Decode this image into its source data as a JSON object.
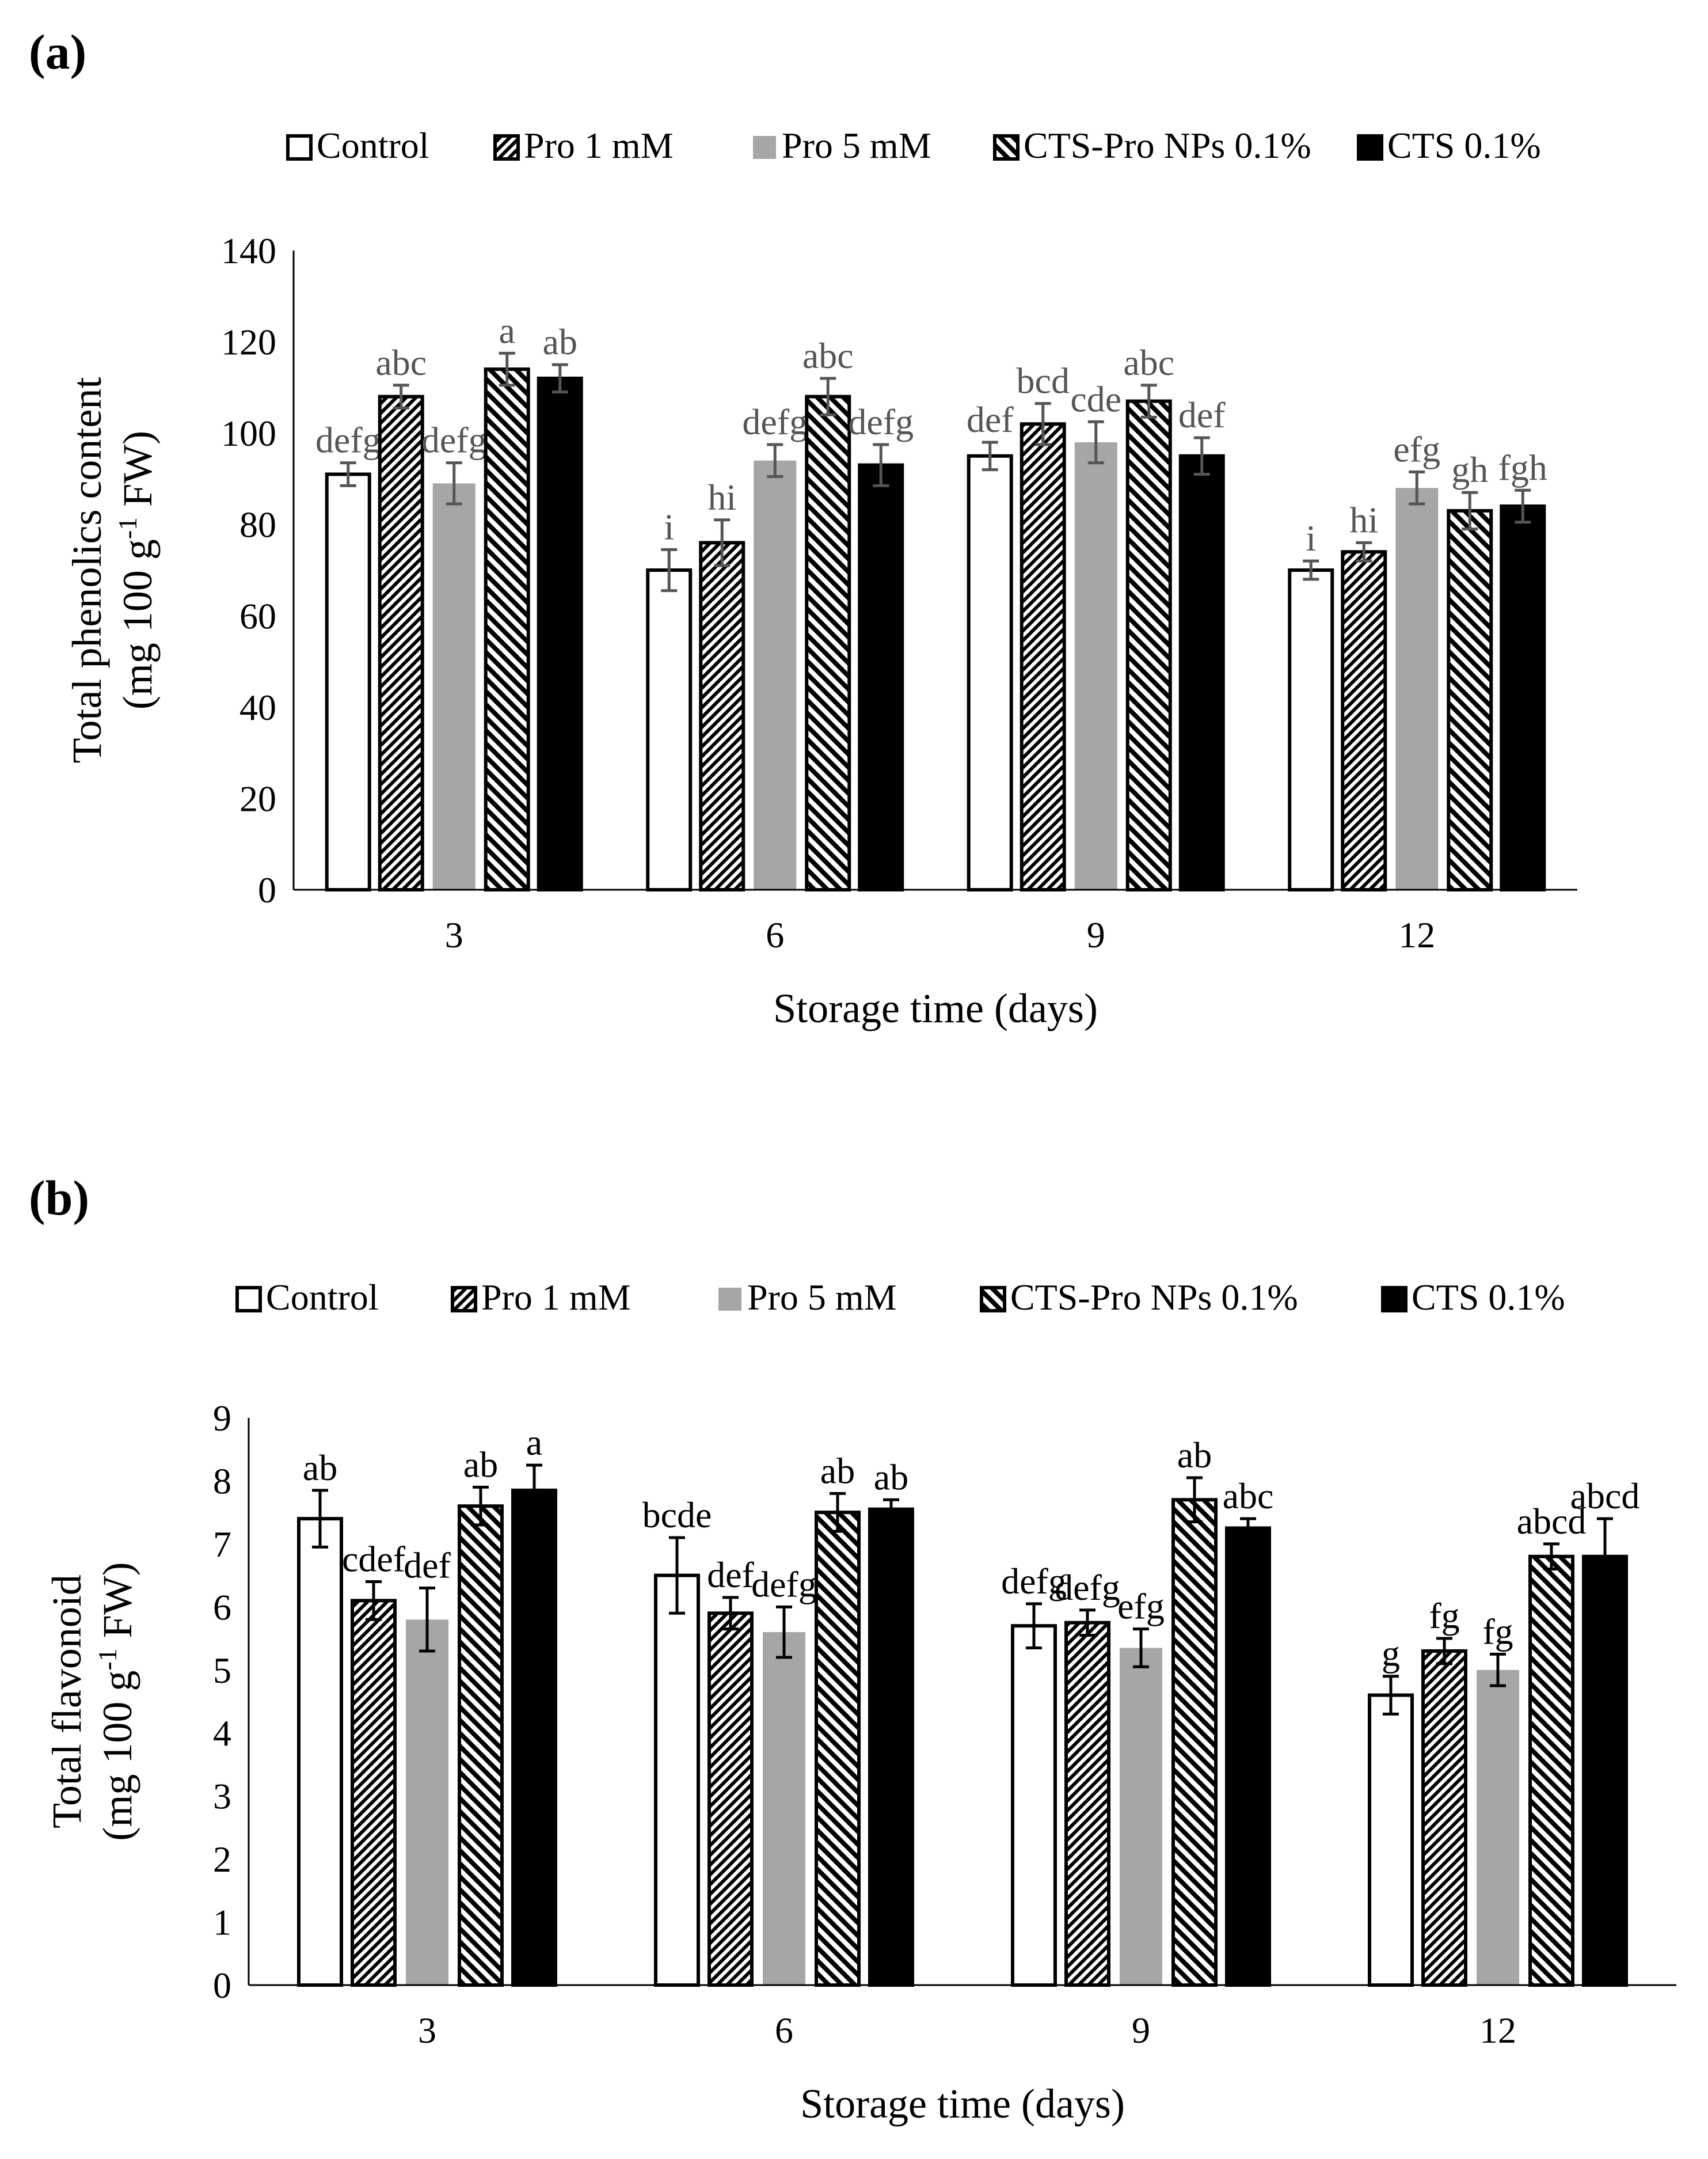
{
  "chart_data": [
    {
      "panel_label": "(a)",
      "type": "bar",
      "categories": [
        "3",
        "6",
        "9",
        "12"
      ],
      "legend": [
        "Control",
        "Pro 1 mM",
        "Pro 5 mM",
        "CTS-Pro NPs 0.1%",
        "CTS 0.1%"
      ],
      "xlabel": "Storage time (days)",
      "ylabel_line1": "Total phenolics content",
      "ylabel_line2_pre": "(mg 100 g",
      "ylabel_sup": "-1",
      "ylabel_line2_post": " FW)",
      "ylim": [
        0,
        140
      ],
      "yticks": [
        "0",
        "20",
        "40",
        "60",
        "80",
        "100",
        "120",
        "140"
      ],
      "label_color": "#555555",
      "series": [
        {
          "name": "Control",
          "values": [
            91,
            70,
            95,
            70
          ],
          "errors": [
            2.5,
            4.5,
            3,
            2
          ],
          "letters": [
            "defg",
            "i",
            "def",
            "i"
          ]
        },
        {
          "name": "Pro 1 mM",
          "values": [
            108,
            76,
            102,
            74
          ],
          "errors": [
            2.5,
            5,
            4.5,
            2
          ],
          "letters": [
            "abc",
            "hi",
            "bcd",
            "hi"
          ]
        },
        {
          "name": "Pro 5 mM",
          "values": [
            89,
            94,
            98,
            88
          ],
          "errors": [
            4.5,
            3.5,
            4.5,
            3.5
          ],
          "letters": [
            "defg",
            "defg",
            "cde",
            "efg"
          ]
        },
        {
          "name": "CTS-Pro NPs 0.1%",
          "values": [
            114,
            108,
            107,
            83
          ],
          "errors": [
            3.5,
            4,
            3.5,
            4
          ],
          "letters": [
            "a",
            "abc",
            "abc",
            "gh"
          ]
        },
        {
          "name": "CTS 0.1%",
          "values": [
            112,
            93,
            95,
            84
          ],
          "errors": [
            3,
            4.5,
            4,
            3.5
          ],
          "letters": [
            "ab",
            "defg",
            "def",
            "fgh"
          ]
        }
      ]
    },
    {
      "panel_label": "(b)",
      "type": "bar",
      "categories": [
        "3",
        "6",
        "9",
        "12"
      ],
      "legend": [
        "Control",
        "Pro 1 mM",
        "Pro 5 mM",
        "CTS-Pro NPs 0.1%",
        "CTS 0.1%"
      ],
      "xlabel": "Storage time (days)",
      "ylabel_line1": "Total flavonoid",
      "ylabel_line2_pre": "(mg 100 g",
      "ylabel_sup": "-1",
      "ylabel_line2_post": " FW)",
      "ylim": [
        0,
        9
      ],
      "yticks": [
        "0",
        "1",
        "2",
        "3",
        "4",
        "5",
        "6",
        "7",
        "8",
        "9"
      ],
      "label_color": "#000000",
      "series": [
        {
          "name": "Control",
          "values": [
            7.4,
            6.5,
            5.7,
            4.6
          ],
          "errors": [
            0.45,
            0.6,
            0.35,
            0.3
          ],
          "letters": [
            "ab",
            "bcde",
            "defg",
            "g"
          ]
        },
        {
          "name": "Pro 1 mM",
          "values": [
            6.1,
            5.9,
            5.75,
            5.3
          ],
          "errors": [
            0.3,
            0.25,
            0.2,
            0.2
          ],
          "letters": [
            "cdef",
            "def",
            "defg",
            "fg"
          ]
        },
        {
          "name": "Pro 5 mM",
          "values": [
            5.8,
            5.6,
            5.35,
            5.0
          ],
          "errors": [
            0.5,
            0.4,
            0.3,
            0.25
          ],
          "letters": [
            "def",
            "defg",
            "efg",
            "fg"
          ]
        },
        {
          "name": "CTS-Pro NPs 0.1%",
          "values": [
            7.6,
            7.5,
            7.7,
            6.8
          ],
          "errors": [
            0.3,
            0.3,
            0.35,
            0.2
          ],
          "letters": [
            "ab",
            "ab",
            "ab",
            "abcd"
          ]
        },
        {
          "name": "CTS 0.1%",
          "values": [
            7.85,
            7.55,
            7.25,
            6.8
          ],
          "errors": [
            0.4,
            0.15,
            0.15,
            0.6
          ],
          "letters": [
            "a",
            "ab",
            "abc",
            "abcd"
          ]
        }
      ]
    }
  ]
}
